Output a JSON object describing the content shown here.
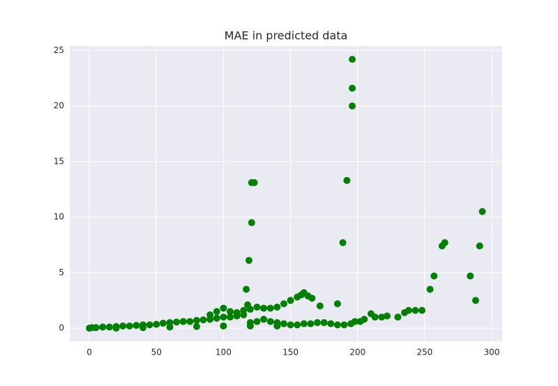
{
  "chart_data": {
    "type": "scatter",
    "title": "MAE in predicted data",
    "color": "#008000",
    "grid": true,
    "xlim": [
      -14.6,
      307.8
    ],
    "ylim": [
      -1.19,
      25.4
    ],
    "xticks": [
      0,
      50,
      100,
      150,
      200,
      250,
      300
    ],
    "yticks": [
      0,
      5,
      10,
      15,
      20,
      25
    ],
    "x": [
      0,
      2,
      5,
      10,
      15,
      20,
      25,
      30,
      35,
      40,
      45,
      50,
      55,
      60,
      65,
      70,
      75,
      80,
      85,
      90,
      95,
      100,
      105,
      110,
      115,
      90,
      95,
      100,
      105,
      110,
      115,
      118,
      120,
      125,
      130,
      135,
      140,
      145,
      150,
      155,
      158,
      163,
      166,
      120,
      125,
      130,
      135,
      140,
      145,
      150,
      155,
      160,
      165,
      170,
      175,
      180,
      185,
      190,
      195,
      198,
      202,
      205,
      210,
      213,
      218,
      222,
      230,
      235,
      238,
      243,
      248,
      20,
      40,
      60,
      80,
      100,
      120,
      140,
      117,
      119,
      121,
      121,
      123,
      189,
      192,
      196,
      196,
      196,
      185,
      172,
      254,
      257,
      263,
      265,
      284,
      288,
      291,
      293,
      160
    ],
    "y": [
      0,
      0.05,
      0.05,
      0.1,
      0.1,
      0.15,
      0.2,
      0.2,
      0.25,
      0.3,
      0.3,
      0.35,
      0.45,
      0.5,
      0.55,
      0.6,
      0.6,
      0.7,
      0.75,
      0.8,
      0.9,
      1.0,
      1.0,
      1.1,
      1.2,
      1.2,
      1.5,
      1.8,
      1.5,
      1.4,
      1.6,
      2.1,
      1.7,
      1.9,
      1.8,
      1.8,
      1.9,
      2.2,
      2.5,
      2.8,
      3.0,
      2.9,
      2.7,
      0.5,
      0.6,
      0.8,
      0.6,
      0.5,
      0.4,
      0.3,
      0.3,
      0.4,
      0.4,
      0.5,
      0.5,
      0.4,
      0.3,
      0.3,
      0.4,
      0.6,
      0.6,
      0.8,
      1.3,
      1.0,
      1.0,
      1.1,
      1.0,
      1.4,
      1.6,
      1.6,
      1.6,
      0,
      0.05,
      0.1,
      0.15,
      0.2,
      0.2,
      0.2,
      3.5,
      6.1,
      9.5,
      13.1,
      13.1,
      7.7,
      13.3,
      24.2,
      21.6,
      20.0,
      2.2,
      2.0,
      3.5,
      4.7,
      7.4,
      7.7,
      4.7,
      2.5,
      7.4,
      10.5,
      3.2
    ]
  }
}
